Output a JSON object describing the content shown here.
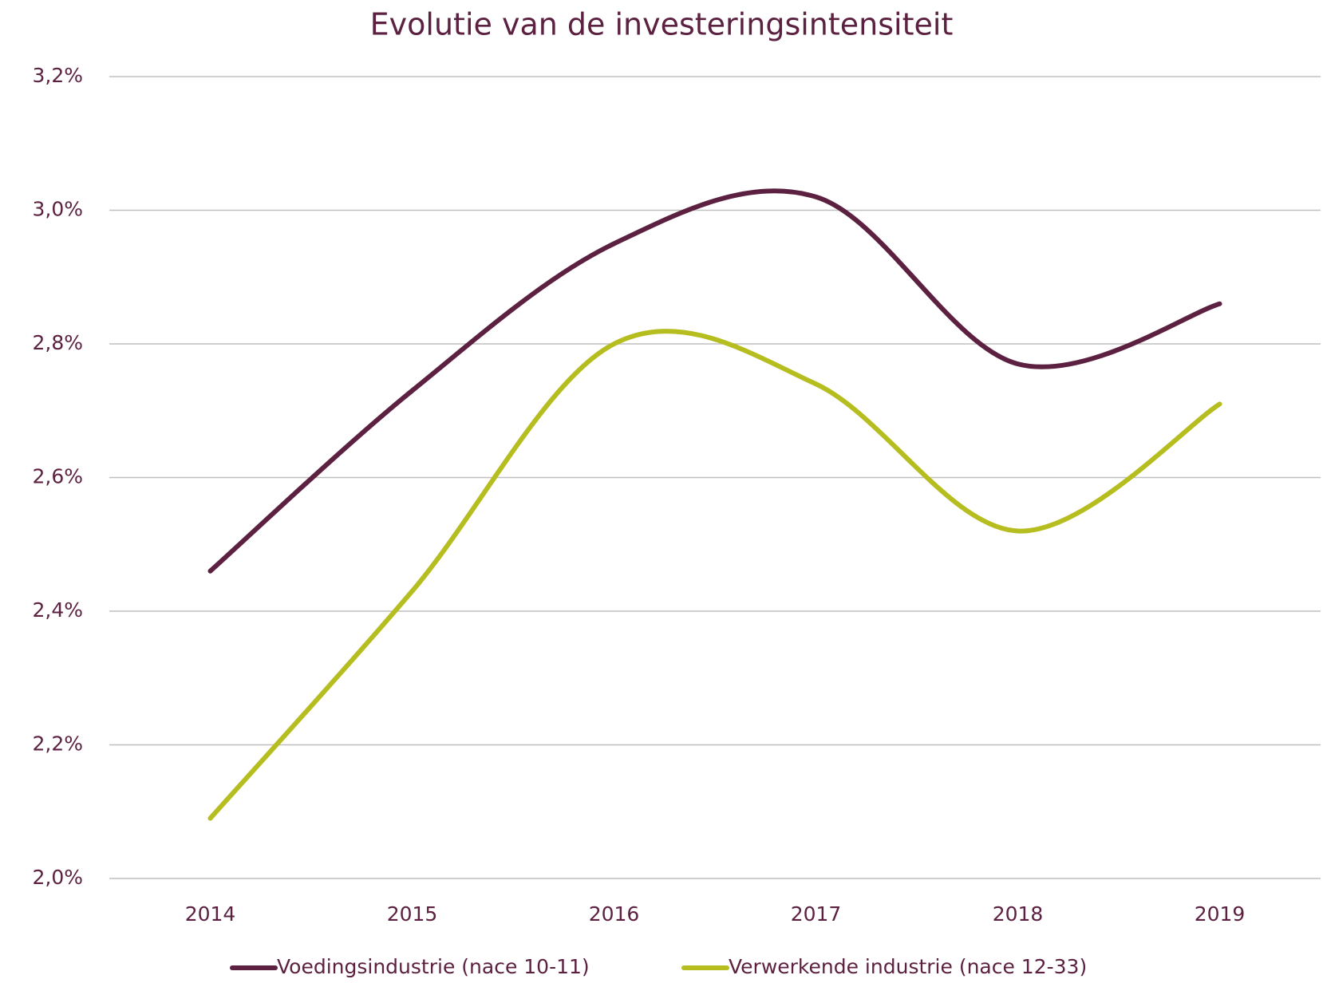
{
  "chart_data": {
    "type": "line",
    "title": "Evolutie van de investeringsintensiteit",
    "categories": [
      "2014",
      "2015",
      "2016",
      "2017",
      "2018",
      "2019"
    ],
    "series": [
      {
        "name": "Voedingsindustrie (nace 10-11)",
        "color": "#5c2140",
        "values": [
          2.46,
          2.73,
          2.95,
          3.02,
          2.77,
          2.86
        ]
      },
      {
        "name": "Verwerkende industrie (nace 12-33)",
        "color": "#b5bd1f",
        "values": [
          2.09,
          2.43,
          2.8,
          2.74,
          2.52,
          2.71
        ]
      }
    ],
    "ylim": [
      2.0,
      3.2
    ],
    "yticks": [
      {
        "value": 2.0,
        "label": "2,0%"
      },
      {
        "value": 2.2,
        "label": "2,2%"
      },
      {
        "value": 2.4,
        "label": "2,4%"
      },
      {
        "value": 2.6,
        "label": "2,6%"
      },
      {
        "value": 2.8,
        "label": "2,8%"
      },
      {
        "value": 3.0,
        "label": "3,0%"
      },
      {
        "value": 3.2,
        "label": "3,2%"
      }
    ],
    "grid": true,
    "smooth": true,
    "legend": "bottom"
  }
}
